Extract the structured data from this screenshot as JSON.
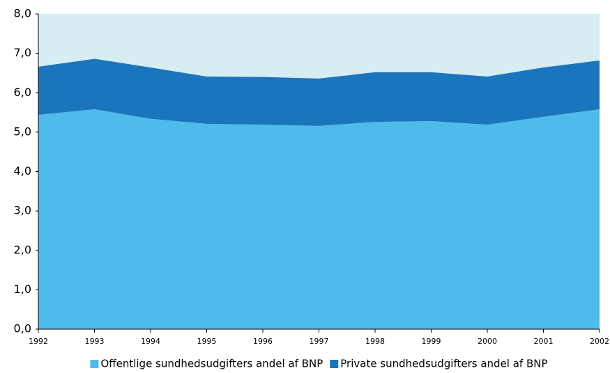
{
  "chart_data": {
    "type": "stacked-area",
    "categories": [
      "1992",
      "1993",
      "1994",
      "1995",
      "1996",
      "1997",
      "1998",
      "1999",
      "2000",
      "2001",
      "2002"
    ],
    "series": [
      {
        "name": "Offentlige sundhedsudgifters andel af BNP",
        "color": "#4fbbea",
        "values": [
          5.44,
          5.58,
          5.34,
          5.21,
          5.19,
          5.16,
          5.26,
          5.28,
          5.19,
          5.39,
          5.58
        ]
      },
      {
        "name": "Private sundhedsudgifters andel af BNP",
        "color": "#1b75bc",
        "values": [
          1.22,
          1.28,
          1.3,
          1.2,
          1.21,
          1.2,
          1.26,
          1.24,
          1.22,
          1.25,
          1.24
        ]
      }
    ],
    "ylim": [
      0,
      8
    ],
    "yticks": [
      {
        "value": 0,
        "label": "0,0"
      },
      {
        "value": 1,
        "label": "1,0"
      },
      {
        "value": 2,
        "label": "2,0"
      },
      {
        "value": 3,
        "label": "3,0"
      },
      {
        "value": 4,
        "label": "4,0"
      },
      {
        "value": 5,
        "label": "5,0"
      },
      {
        "value": 6,
        "label": "6,0"
      },
      {
        "value": 7,
        "label": "7,0"
      },
      {
        "value": 8,
        "label": "8,0"
      }
    ],
    "plot_background": "#d6edf4",
    "grid": false,
    "legend": "bottom"
  }
}
